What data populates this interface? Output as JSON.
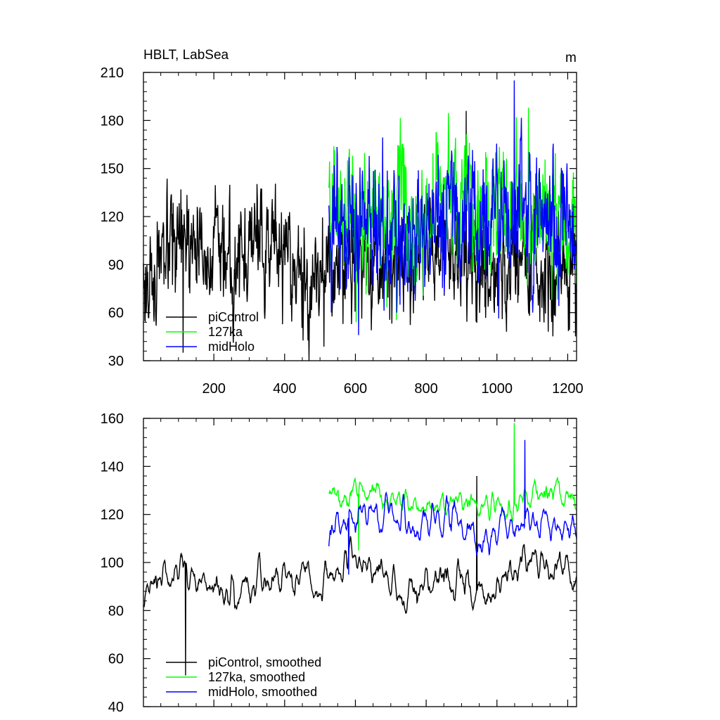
{
  "chart_data": [
    {
      "type": "line",
      "title": "HBLT, LabSea",
      "units": "m",
      "xlim": [
        1,
        1225
      ],
      "ylim": [
        30,
        210
      ],
      "xticks": [
        200,
        400,
        600,
        800,
        1000,
        1200
      ],
      "yticks": [
        30,
        60,
        90,
        120,
        150,
        180,
        210
      ],
      "show_x_tick_labels": true,
      "grid": false,
      "legend_position": "bottom-left",
      "series": [
        {
          "name": "piControl",
          "color": "#000000",
          "x_range": [
            1,
            1225
          ],
          "mean": 93,
          "amplitude": 22,
          "noise": 14,
          "peak": 186,
          "trough": 35,
          "smoothed": false
        },
        {
          "name": "127ka",
          "color": "#00ff00",
          "x_range": [
            525,
            1225
          ],
          "mean": 122,
          "amplitude": 18,
          "noise": 16,
          "peak": 188,
          "trough": 54,
          "smoothed": false
        },
        {
          "name": "midHolo",
          "color": "#0000ff",
          "x_range": [
            525,
            1225
          ],
          "mean": 114,
          "amplitude": 20,
          "noise": 17,
          "peak": 205,
          "trough": 46,
          "smoothed": false
        }
      ]
    },
    {
      "type": "line",
      "title": "",
      "xlim": [
        1,
        1225
      ],
      "ylim": [
        40,
        160
      ],
      "xticks": [
        200,
        400,
        600,
        800,
        1000,
        1200
      ],
      "yticks": [
        40,
        60,
        80,
        100,
        120,
        140,
        160
      ],
      "show_x_tick_labels": false,
      "grid": false,
      "legend_position": "bottom-left",
      "series": [
        {
          "name": "piControl, smoothed",
          "color": "#000000",
          "x_range": [
            1,
            1225
          ],
          "mean": 93,
          "amplitude": 8,
          "noise": 6,
          "peak": 136,
          "trough": 53,
          "smoothed": true
        },
        {
          "name": "127ka, smoothed",
          "color": "#00ff00",
          "x_range": [
            525,
            1225
          ],
          "mean": 125,
          "amplitude": 6,
          "noise": 5,
          "peak": 158,
          "trough": 105,
          "smoothed": true
        },
        {
          "name": "midHolo, smoothed",
          "color": "#0000ff",
          "x_range": [
            525,
            1225
          ],
          "mean": 116,
          "amplitude": 7,
          "noise": 6,
          "peak": 151,
          "trough": 95,
          "smoothed": true
        }
      ]
    }
  ]
}
